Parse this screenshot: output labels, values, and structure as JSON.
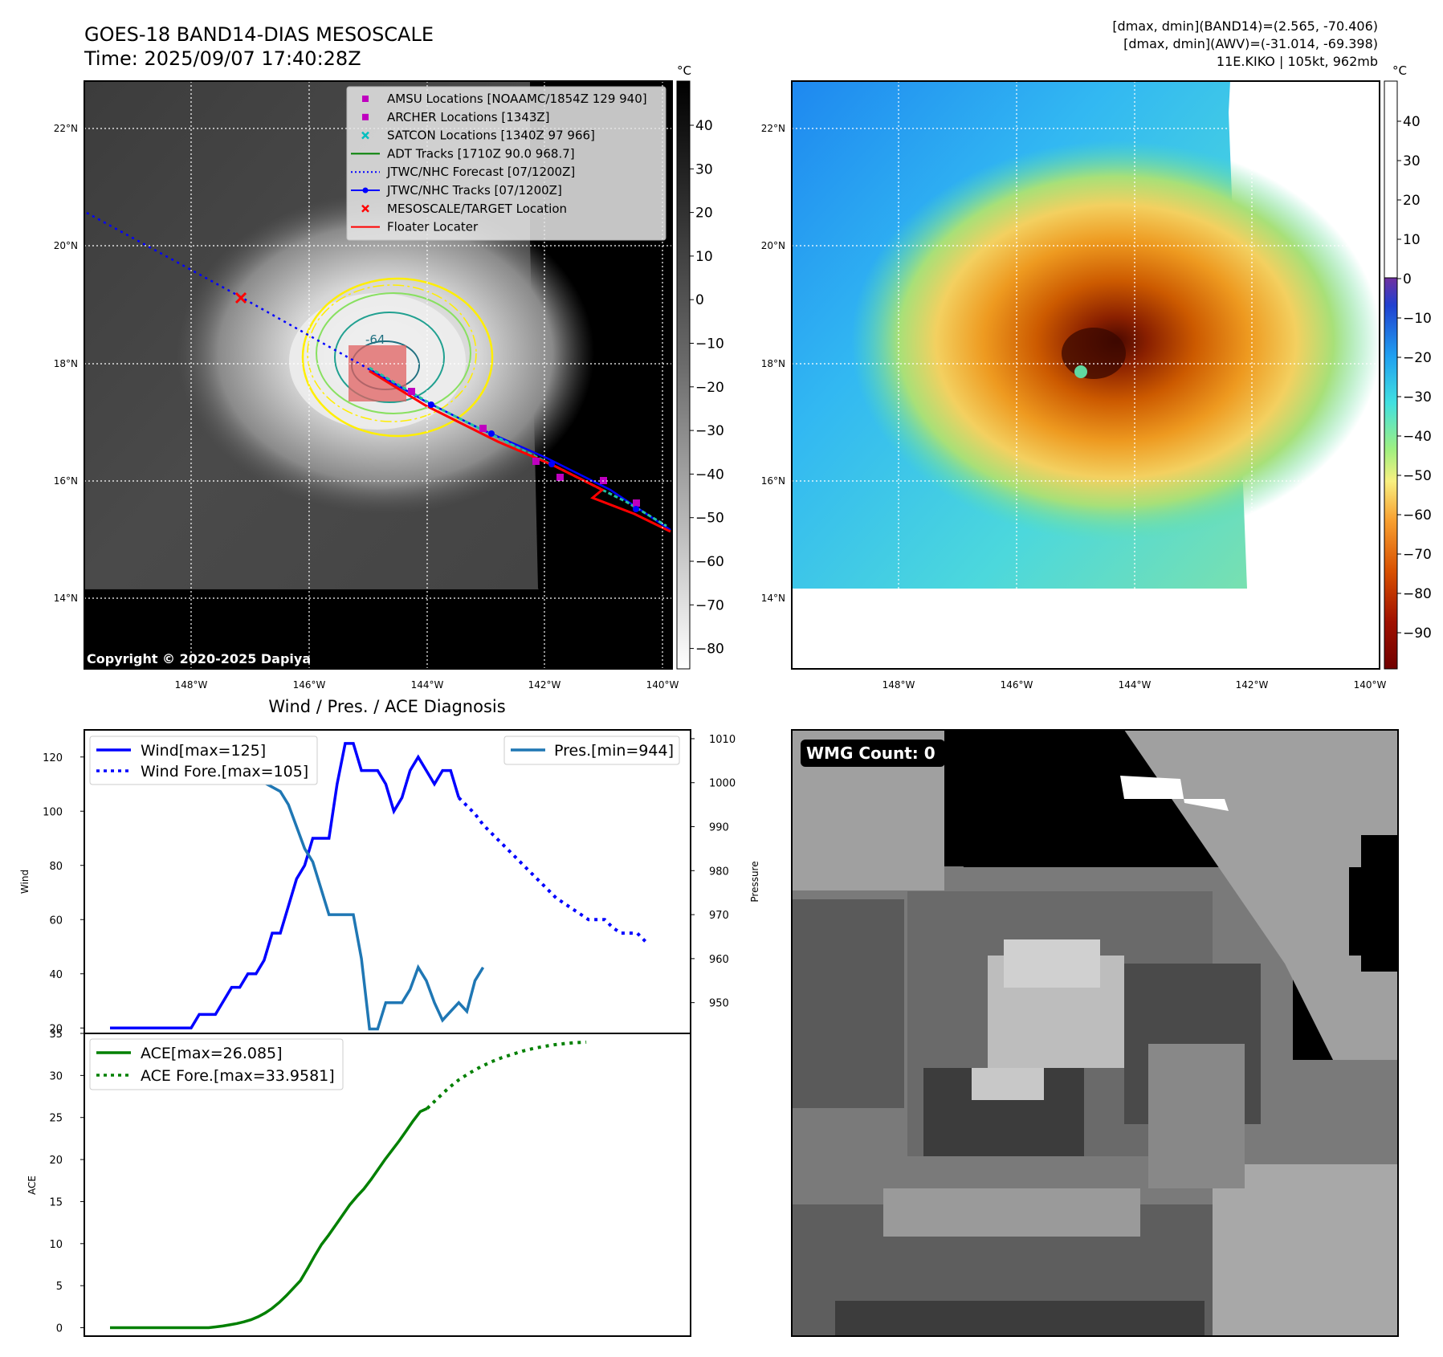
{
  "header": {
    "title_line1": "GOES-18 BAND14-DIAS MESOSCALE",
    "title_line2": "Time: 2025/09/07 17:40:28Z",
    "stats_line1": "[dmax, dmin](BAND14)=(2.565, -70.406)",
    "stats_line2": "[dmax, dmin](AWV)=(-31.014, -69.398)",
    "stats_line3": "11E.KIKO | 105kt, 962mb"
  },
  "maps": {
    "lat_ticks": [
      "22°N",
      "20°N",
      "18°N",
      "16°N",
      "14°N"
    ],
    "lon_ticks": [
      "148°W",
      "146°W",
      "144°W",
      "142°W",
      "140°W"
    ],
    "copyright": "Copyright © 2020-2025 Dapiya",
    "contour_label": "-64",
    "legend": [
      {
        "label": "AMSU Locations [NOAAMC/1854Z 129 940]",
        "marker": "square",
        "color": "#bf00bf"
      },
      {
        "label": "ARCHER Locations [1343Z]",
        "marker": "square",
        "color": "#bf00bf"
      },
      {
        "label": "SATCON Locations [1340Z 97 966]",
        "marker": "x",
        "color": "#00bfbf"
      },
      {
        "label": "ADT Tracks [1710Z 90.0 968.7]",
        "marker": "line",
        "color": "#008000"
      },
      {
        "label": "JTWC/NHC Forecast [07/1200Z]",
        "marker": "dotted",
        "color": "#0000ff"
      },
      {
        "label": "JTWC/NHC Tracks [07/1200Z]",
        "marker": "line-dot",
        "color": "#0000ff"
      },
      {
        "label": "MESOSCALE/TARGET Location",
        "marker": "x",
        "color": "#ff0000"
      },
      {
        "label": "Floater Locater",
        "marker": "line",
        "color": "#ff0000"
      }
    ]
  },
  "colorbars": {
    "unit": "°C",
    "left_ticks": [
      "40",
      "30",
      "20",
      "10",
      "0",
      "−10",
      "−20",
      "−30",
      "−40",
      "−50",
      "−60",
      "−70",
      "−80"
    ],
    "right_ticks": [
      "40",
      "30",
      "20",
      "10",
      "0",
      "−10",
      "−20",
      "−30",
      "−40",
      "−50",
      "−60",
      "−70",
      "−80",
      "−90"
    ]
  },
  "wmg": {
    "label": "WMG Count: 0"
  },
  "chart_data": [
    {
      "type": "line",
      "title": "Wind / Pres. / ACE Diagnosis",
      "ylabel": "Wind",
      "y2label": "Pressure",
      "ylim": [
        18,
        130
      ],
      "y2lim": [
        943,
        1012
      ],
      "yticks": [
        "20",
        "40",
        "60",
        "80",
        "100",
        "120"
      ],
      "y2ticks": [
        "950",
        "960",
        "970",
        "980",
        "990",
        "1000",
        "1010"
      ],
      "legend": [
        {
          "name": "Wind[max=125]",
          "style": "solid",
          "color": "#0000ff"
        },
        {
          "name": "Wind Fore.[max=105]",
          "style": "dotted",
          "color": "#0000ff"
        }
      ],
      "legend2": [
        {
          "name": "Pres.[min=944]",
          "style": "solid",
          "color": "#1f77b4"
        }
      ],
      "series": [
        {
          "values": [
            20,
            20,
            20,
            20,
            20,
            20,
            20,
            20,
            20,
            20,
            20,
            25,
            25,
            25,
            30,
            35,
            35,
            40,
            40,
            45,
            55,
            55,
            65,
            75,
            80,
            90,
            90,
            90,
            110,
            125,
            125,
            115,
            115,
            115,
            110,
            100,
            105,
            115,
            120,
            115,
            110,
            115,
            115,
            105
          ]
        },
        {
          "values": [
            105,
            102,
            99,
            95,
            92,
            89,
            86,
            83,
            80,
            77,
            74,
            71,
            68,
            66,
            64,
            62,
            60,
            60,
            60,
            57,
            55,
            55,
            55,
            52
          ]
        },
        {
          "values": [
            1010,
            1010,
            1010,
            1010,
            1010,
            1010,
            1010,
            1010,
            1010,
            1010,
            1010,
            1010,
            1009,
            1009,
            1008,
            1008,
            1006,
            1004,
            1003,
            1000,
            999,
            998,
            995,
            990,
            985,
            982,
            976,
            970,
            970,
            970,
            970,
            960,
            944,
            944,
            950,
            950,
            950,
            953,
            958,
            955,
            950,
            946,
            948,
            950,
            948,
            955,
            958
          ]
        }
      ]
    },
    {
      "type": "line",
      "ylabel": "ACE",
      "ylim": [
        -1,
        35
      ],
      "yticks": [
        "0",
        "5",
        "10",
        "15",
        "20",
        "25",
        "30",
        "35"
      ],
      "legend": [
        {
          "name": "ACE[max=26.085]",
          "style": "solid",
          "color": "#008000"
        },
        {
          "name": "ACE Fore.[max=33.9581]",
          "style": "dotted",
          "color": "#008000"
        }
      ],
      "series": [
        {
          "values": [
            0,
            0,
            0,
            0,
            0,
            0,
            0,
            0,
            0,
            0,
            0,
            0,
            0,
            0,
            0,
            0.1,
            0.2,
            0.35,
            0.5,
            0.7,
            0.95,
            1.3,
            1.75,
            2.3,
            3.0,
            3.8,
            4.7,
            5.6,
            7.0,
            8.5,
            9.9,
            11.0,
            12.2,
            13.4,
            14.6,
            15.6,
            16.5,
            17.6,
            18.8,
            20.0,
            21.1,
            22.2,
            23.4,
            24.6,
            25.7,
            26.085
          ]
        },
        {
          "values": [
            26.085,
            27.3,
            28.5,
            29.5,
            30.3,
            31.0,
            31.6,
            32.1,
            32.5,
            32.9,
            33.2,
            33.45,
            33.65,
            33.8,
            33.9,
            33.9581
          ]
        }
      ]
    }
  ]
}
